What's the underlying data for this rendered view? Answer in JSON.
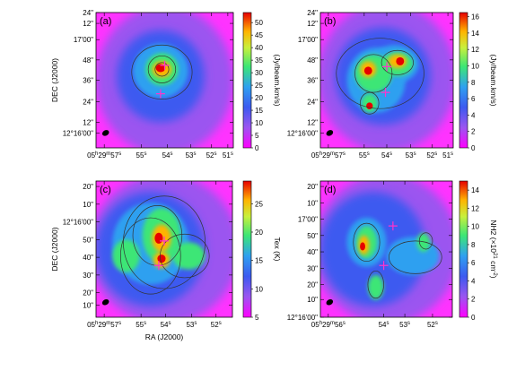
{
  "chart_data": [
    {
      "panel_label": "(a)",
      "type": "heatmap",
      "xlabel": "",
      "ylabel": "DEC (J2000)",
      "x_ticks": [
        "05h29m57s",
        "55s",
        "54s",
        "53s",
        "52s",
        "51s"
      ],
      "y_ticks": [
        "12°16'00\"",
        "12\"",
        "24\"",
        "36\"",
        "48\"",
        "17'00\"",
        "12\"",
        "24\""
      ],
      "colorbar": {
        "label": "(Jy/beam.km/s)",
        "ticks": [
          0,
          5,
          10,
          15,
          20,
          25,
          30,
          35,
          40,
          45,
          50
        ],
        "range": [
          0,
          54
        ]
      },
      "peak_value": 50,
      "background_value": 5
    },
    {
      "panel_label": "(b)",
      "type": "heatmap",
      "xlabel": "",
      "ylabel": "",
      "x_ticks": [
        "05h29m57s",
        "55s",
        "54s",
        "53s",
        "52s",
        "51s"
      ],
      "y_ticks": [
        "12°16'00\"",
        "12\"",
        "24\"",
        "36\"",
        "48\"",
        "17'00\"",
        "12\"",
        "24\""
      ],
      "colorbar": {
        "label": "(Jy/beam.km/s)",
        "ticks": [
          0,
          2,
          4,
          6,
          8,
          10,
          12,
          14,
          16
        ],
        "range": [
          0,
          16.5
        ]
      },
      "peak_value": 15,
      "background_value": 2
    },
    {
      "panel_label": "(c)",
      "type": "heatmap",
      "xlabel": "RA (J2000)",
      "ylabel": "DEC (J2000)",
      "x_ticks": [
        "05h29m57s",
        "55s",
        "54s",
        "53s",
        "52s"
      ],
      "y_ticks": [
        "10\"",
        "20\"",
        "30\"",
        "40\"",
        "50\"",
        "12°16'00\"",
        "10\"",
        "20\""
      ],
      "colorbar": {
        "label": "Tex (K)",
        "ticks": [
          5,
          10,
          15,
          20,
          25
        ],
        "range": [
          5,
          29
        ]
      },
      "peak_value": 28,
      "background_value": 8
    },
    {
      "panel_label": "(d)",
      "type": "heatmap",
      "xlabel": "",
      "ylabel": "",
      "x_ticks": [
        "05h29m56s",
        "54s",
        "53s",
        "52s"
      ],
      "y_ticks": [
        "12°16'00\"",
        "10\"",
        "20\"",
        "30\"",
        "40\"",
        "50\"",
        "17'00\"",
        "10\"",
        "20\""
      ],
      "colorbar": {
        "label": "NH2 (×10^21 cm^-2)",
        "ticks": [
          0,
          2,
          4,
          6,
          8,
          10,
          12,
          14
        ],
        "range": [
          0,
          15
        ]
      },
      "peak_value": 14,
      "background_value": 2
    }
  ]
}
